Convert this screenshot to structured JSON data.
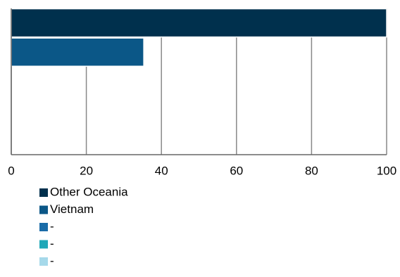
{
  "chart_data": {
    "type": "bar",
    "orientation": "horizontal",
    "series": [
      {
        "name": "Other Oceania",
        "color": "#00304d",
        "values": [
          100
        ]
      },
      {
        "name": "Vietnam",
        "color": "#0b5787",
        "values": [
          35.3
        ]
      },
      {
        "name": "-",
        "color": "#1a6ca8",
        "values": [
          null
        ]
      },
      {
        "name": "-",
        "color": "#20a8b8",
        "values": [
          null
        ]
      },
      {
        "name": "-",
        "color": "#a6d9ea",
        "values": [
          null
        ]
      }
    ],
    "xlim": [
      0,
      100
    ],
    "xticks": [
      0,
      20,
      40,
      60,
      80,
      100
    ],
    "grid": true
  }
}
